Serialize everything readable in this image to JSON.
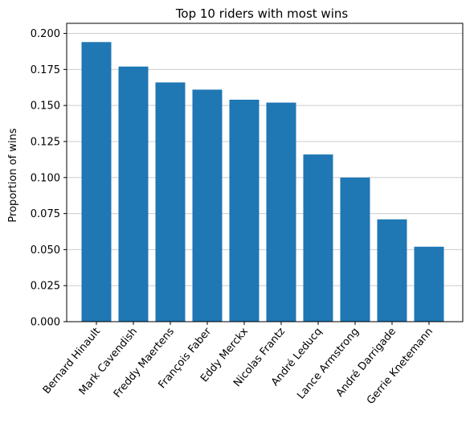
{
  "chart_data": {
    "type": "bar",
    "title": "Top 10 riders with most wins",
    "xlabel": "",
    "ylabel": "Proportion of wins",
    "categories": [
      "Bernard Hinault",
      "Mark Cavendish",
      "Freddy Maertens",
      "François Faber",
      "Eddy Merckx",
      "Nicolas Frantz",
      "André Leducq",
      "Lance Armstrong",
      "André Darrigade",
      "Gerrie Knetemann"
    ],
    "values": [
      0.194,
      0.177,
      0.166,
      0.161,
      0.154,
      0.152,
      0.116,
      0.1,
      0.071,
      0.052
    ],
    "ylim": [
      0,
      0.207
    ],
    "yticks": [
      "0.000",
      "0.025",
      "0.050",
      "0.075",
      "0.100",
      "0.125",
      "0.150",
      "0.175",
      "0.200"
    ],
    "grid": "horizontal",
    "legend": "none",
    "bar_color": "#1f77b4",
    "grid_color": "#cccccc"
  }
}
